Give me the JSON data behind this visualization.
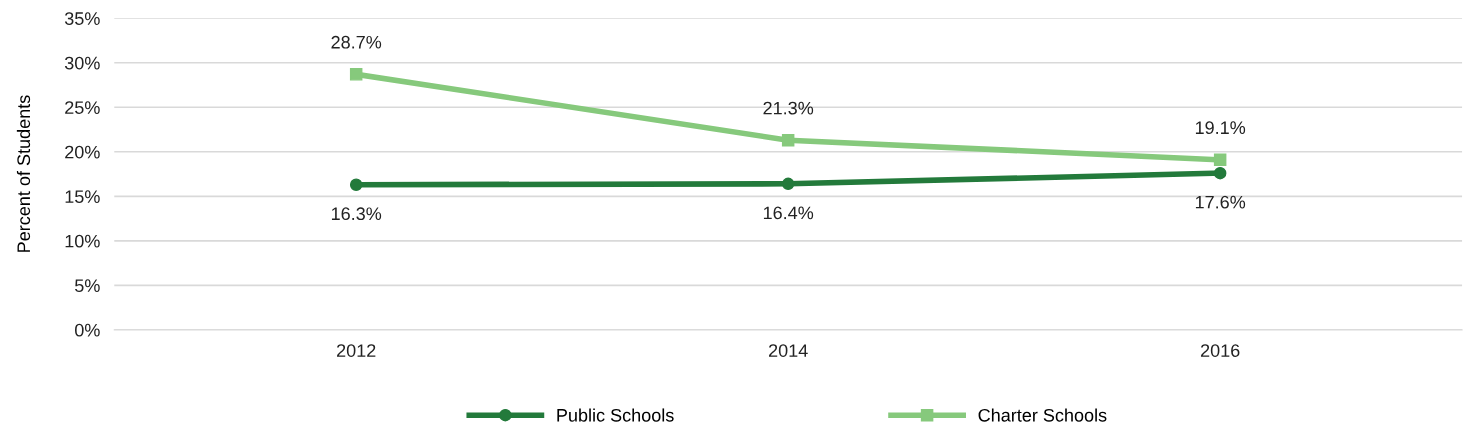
{
  "chart_data": {
    "type": "line",
    "ylabel": "Percent of Students",
    "categories": [
      "2012",
      "2014",
      "2016"
    ],
    "series": [
      {
        "name": "Public Schools",
        "color": "#237a3b",
        "marker": "circle",
        "values": [
          16.3,
          16.4,
          17.6
        ],
        "value_labels": [
          "16.3%",
          "16.4%",
          "17.6%"
        ]
      },
      {
        "name": "Charter Schools",
        "color": "#86c97c",
        "marker": "square",
        "values": [
          28.7,
          21.3,
          19.1
        ],
        "value_labels": [
          "28.7%",
          "21.3%",
          "19.1%"
        ]
      }
    ],
    "ylim": [
      0,
      35
    ],
    "yticks": [
      {
        "value": 0,
        "label": "0%"
      },
      {
        "value": 5,
        "label": "5%"
      },
      {
        "value": 10,
        "label": "10%"
      },
      {
        "value": 15,
        "label": "15%"
      },
      {
        "value": 20,
        "label": "20%"
      },
      {
        "value": 25,
        "label": "25%"
      },
      {
        "value": 30,
        "label": "30%"
      },
      {
        "value": 35,
        "label": "35%"
      }
    ],
    "grid": "y",
    "legend": "bottom",
    "line_style": "solid"
  }
}
